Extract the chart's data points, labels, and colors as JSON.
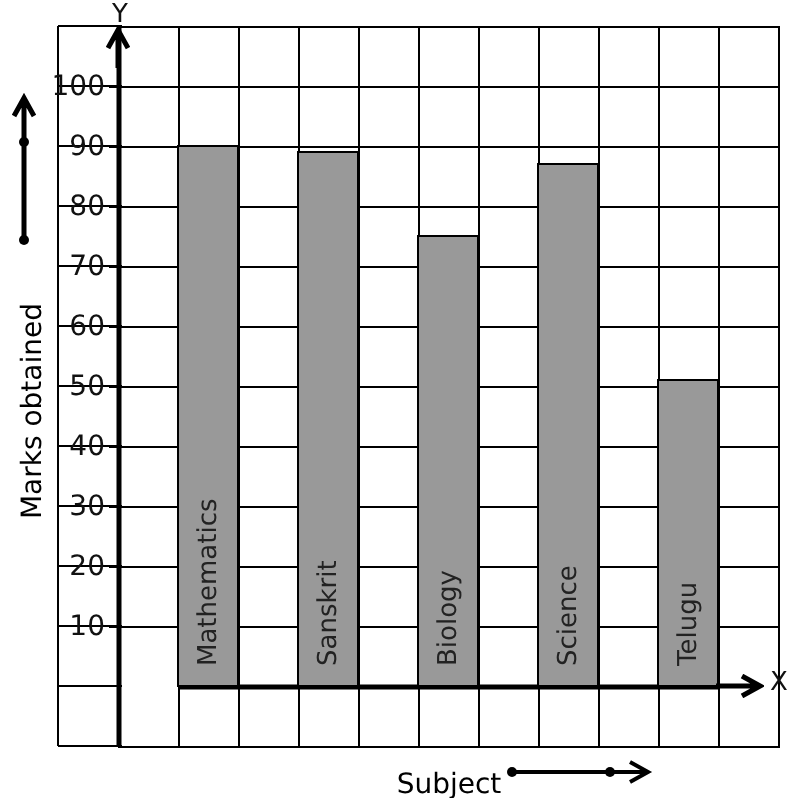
{
  "chart_data": {
    "type": "bar",
    "xlabel": "Subject",
    "ylabel": "Marks obtained",
    "categories": [
      "Mathematics",
      "Sanskrit",
      "Biology",
      "Science",
      "Telugu"
    ],
    "values": [
      90,
      89,
      75,
      87,
      51
    ],
    "color": "#999999",
    "ylim": [
      -10,
      110
    ],
    "yticks": [
      10,
      20,
      30,
      40,
      50,
      60,
      70,
      80,
      90,
      100
    ],
    "grid": true,
    "annotations": [
      "Y",
      "X"
    ]
  }
}
